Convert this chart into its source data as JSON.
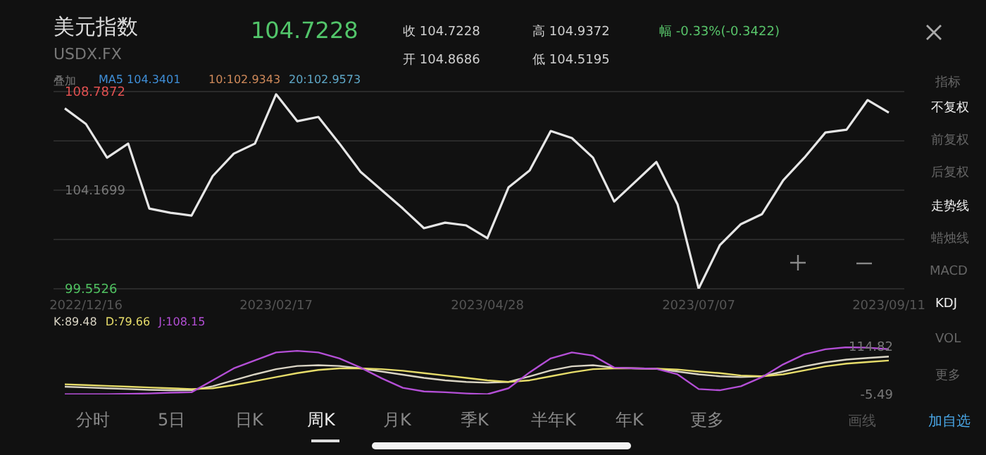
{
  "chart_data": [
    {
      "type": "line",
      "title": "美元指数",
      "subtitle": "USDX.FX",
      "annotations": [
        "104.7228",
        "收 104.7228",
        "开 104.8686",
        "高 104.9372",
        "低 104.5195",
        "幅 -0.33%(-0.3422)",
        "叠加",
        "MA5 104.3401",
        "10:102.9343",
        "20:102.9573",
        "指标",
        "不复权",
        "前复权",
        "后复权",
        "走势线",
        "蜡烛线",
        "MACD",
        "KDJ",
        "VOL",
        "更多",
        "分时",
        "5日",
        "日K",
        "周K",
        "月K",
        "季K",
        "半年K",
        "年K",
        "更多",
        "画线",
        "加自选"
      ],
      "categories": [
        null,
        "2022/12/16",
        null,
        null,
        null,
        null,
        null,
        null,
        null,
        null,
        "2023/02/17",
        null,
        null,
        null,
        null,
        null,
        null,
        null,
        null,
        null,
        "2023/04/28",
        null,
        null,
        null,
        null,
        null,
        null,
        null,
        null,
        null,
        "2023/07/07",
        null,
        null,
        null,
        null,
        null,
        null,
        null,
        null,
        "2023/09/11"
      ],
      "values": [
        108.0,
        107.27,
        105.69,
        106.35,
        103.31,
        103.11,
        102.98,
        104.83,
        105.88,
        106.35,
        108.66,
        107.4,
        107.6,
        106.35,
        105.03,
        104.17,
        103.31,
        102.39,
        102.65,
        102.52,
        101.92,
        104.3,
        105.09,
        106.94,
        106.61,
        105.69,
        103.64,
        104.56,
        105.49,
        103.51,
        99.56,
        101.59,
        102.58,
        103.05,
        104.63,
        105.69,
        106.87,
        107.0,
        108.39,
        107.8
      ],
      "color": "#e6e6e6",
      "ylim": [
        99.5526,
        108.7872
      ],
      "yticks": [
        99.5526,
        {
          "value": 101.8613,
          "label": null
        },
        104.1699,
        {
          "value": 106.4786,
          "label": null
        },
        108.7872
      ],
      "grid": "y"
    },
    {
      "type": "line",
      "categories": [
        null,
        null,
        null,
        null,
        null,
        null,
        null,
        null,
        null,
        null,
        null,
        null,
        null,
        null,
        null,
        null,
        null,
        null,
        null,
        null,
        null,
        null,
        null,
        null,
        null,
        null,
        null,
        null,
        null,
        null,
        null,
        null,
        null,
        null,
        null,
        null,
        null,
        null,
        null,
        null
      ],
      "series": [
        {
          "name": "K:89.48",
          "color": "#d9d4c4",
          "values": [
            14,
            12,
            10,
            8,
            6,
            5,
            5,
            15,
            30,
            45,
            58,
            66,
            68,
            66,
            60,
            52,
            44,
            36,
            30,
            26,
            24,
            26,
            40,
            55,
            65,
            68,
            62,
            60,
            59,
            52,
            45,
            40,
            38,
            40,
            52,
            65,
            75,
            82,
            86,
            89.48
          ]
        },
        {
          "name": "D:79.66",
          "color": "#e6dc6a",
          "values": [
            20,
            18,
            16,
            14,
            12,
            10,
            8,
            10,
            18,
            28,
            38,
            48,
            56,
            60,
            60,
            58,
            54,
            48,
            42,
            36,
            30,
            26,
            30,
            40,
            50,
            58,
            60,
            60,
            59,
            57,
            52,
            48,
            42,
            40,
            45,
            55,
            65,
            72,
            76,
            79.66
          ]
        },
        {
          "name": "J:108.15",
          "color": "#b44fd6",
          "values": [
            -5,
            -5,
            -5,
            -4,
            -3,
            -1,
            0,
            30,
            60,
            80,
            100,
            104,
            100,
            85,
            62,
            35,
            11,
            2,
            0,
            -3,
            -5,
            10,
            50,
            85,
            100,
            92,
            62,
            60,
            59,
            45,
            8,
            5,
            15,
            38,
            70,
            95,
            108,
            113,
            112,
            108.15
          ]
        }
      ],
      "ylim": [
        -5.49,
        114.82
      ],
      "yticks": [
        -5.49,
        114.82
      ],
      "legend": "top left"
    }
  ]
}
